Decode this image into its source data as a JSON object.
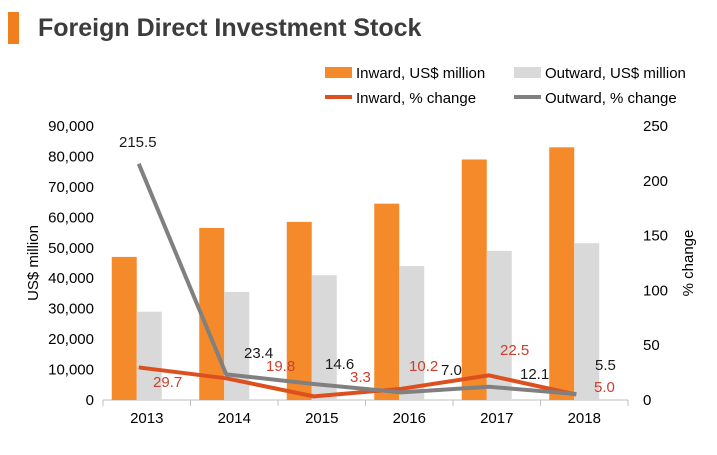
{
  "header": {
    "title": "Foreign Direct Investment Stock",
    "accent_color": "#f0801e"
  },
  "chart_data": {
    "type": "bar",
    "title": "Foreign Direct Investment Stock",
    "categories": [
      "2013",
      "2014",
      "2015",
      "2016",
      "2017",
      "2018"
    ],
    "y_left": {
      "label": "US$ million",
      "ylim": [
        0,
        90000
      ],
      "ticks": [
        0,
        10000,
        20000,
        30000,
        40000,
        50000,
        60000,
        70000,
        80000,
        90000
      ],
      "tick_labels": [
        "0",
        "10,000",
        "20,000",
        "30,000",
        "40,000",
        "50,000",
        "60,000",
        "70,000",
        "80,000",
        "90,000"
      ]
    },
    "y_right": {
      "label": "% change",
      "ylim": [
        0,
        250
      ],
      "ticks": [
        0,
        50,
        100,
        150,
        200,
        250
      ],
      "tick_labels": [
        "0",
        "50",
        "100",
        "150",
        "200",
        "250"
      ]
    },
    "bar_series": [
      {
        "name": "Inward, US$ million",
        "color": "#f58a2a",
        "values": [
          47000,
          56500,
          58500,
          64500,
          79000,
          83000
        ]
      },
      {
        "name": "Outward, US$ million",
        "color": "#d9d9d9",
        "values": [
          29000,
          35500,
          41000,
          44000,
          49000,
          51500
        ]
      }
    ],
    "line_series": [
      {
        "name": "Inward, % change",
        "color": "#dc5020",
        "label_color": "#c8402e",
        "values": [
          29.7,
          19.8,
          3.3,
          10.2,
          22.5,
          5.0
        ],
        "labels": [
          "29.7",
          "19.8",
          "3.3",
          "10.2",
          "22.5",
          "5.0"
        ]
      },
      {
        "name": "Outward, % change",
        "color": "#808080",
        "label_color": "#1a1a1a",
        "values": [
          215.5,
          23.4,
          14.6,
          7.0,
          12.1,
          5.5
        ],
        "labels": [
          "215.5",
          "23.4",
          "14.6",
          "7.0",
          "12.1",
          "5.5"
        ]
      }
    ],
    "legend": {
      "items": [
        "Inward, US$ million",
        "Outward, US$ million",
        "Inward, % change",
        "Outward, % change"
      ],
      "position": "top-right"
    },
    "grid": false
  }
}
